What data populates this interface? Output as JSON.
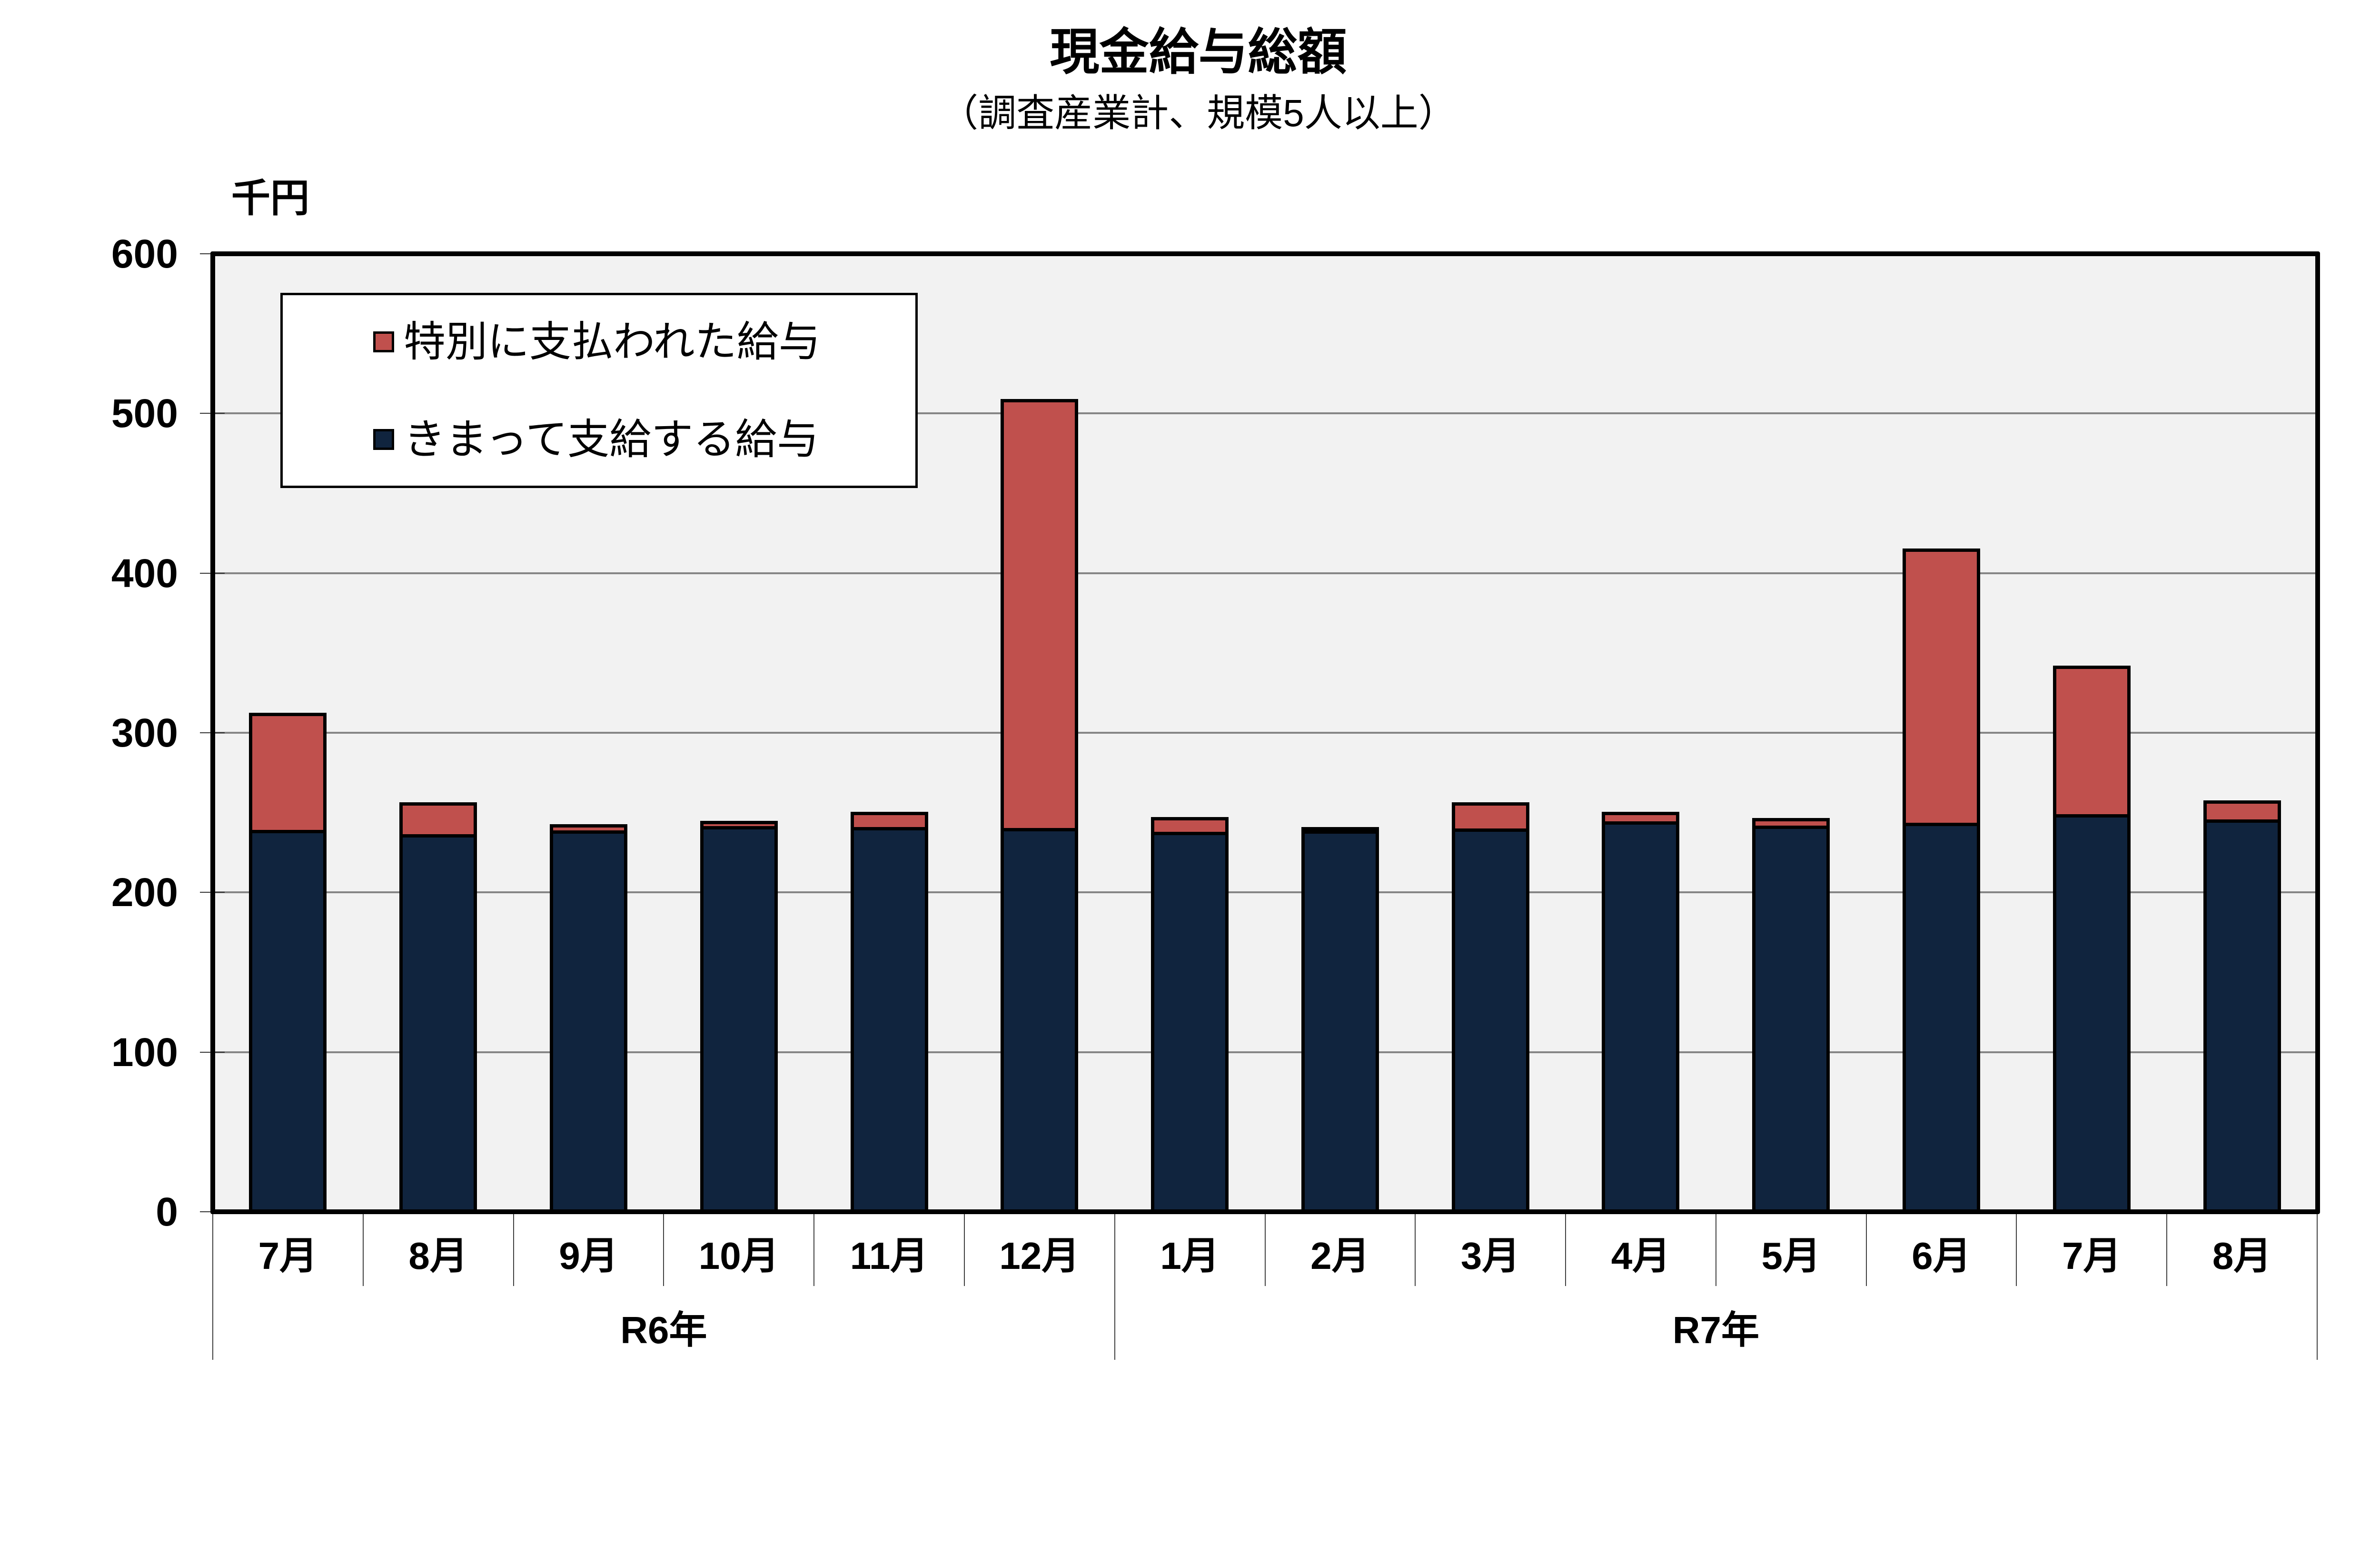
{
  "chart_data": {
    "type": "bar",
    "stacked": true,
    "title": "現金給与総額",
    "subtitle": "（調査産業計、規模5人以上）",
    "xlabel": "",
    "ylabel": "千円",
    "ylim": [
      0,
      600
    ],
    "yticks": [
      0,
      100,
      200,
      300,
      400,
      500,
      600
    ],
    "grid": true,
    "legend_position": "upper-left, inside plot area",
    "legend": [
      {
        "label": "特別に支払われた給与",
        "color": "#C0504D"
      },
      {
        "label": "きまって支給する給与",
        "color": "#10243E"
      }
    ],
    "categories": [
      "7月",
      "8月",
      "9月",
      "10月",
      "11月",
      "12月",
      "1月",
      "2月",
      "3月",
      "4月",
      "5月",
      "6月",
      "7月",
      "8月"
    ],
    "category_groups": [
      {
        "label": "R6年",
        "span": 6
      },
      {
        "label": "R7年",
        "span": 8
      }
    ],
    "series": [
      {
        "name": "きまって支給する給与",
        "color": "#10243E",
        "values": [
          238.1,
          235.4,
          237.8,
          240.6,
          239.9,
          239.4,
          236.9,
          237.9,
          238.9,
          243.4,
          240.9,
          242.5,
          248.1,
          244.7
        ]
      },
      {
        "name": "特別に支払われた給与",
        "color": "#C0504D",
        "values": [
          73.4,
          20.0,
          3.8,
          3.2,
          9.5,
          268.6,
          9.2,
          0.7,
          16.4,
          6.0,
          4.6,
          171.9,
          92.8,
          11.8
        ]
      }
    ],
    "totals": [
      311.5,
      255.4,
      241.6,
      243.8,
      249.4,
      508.0,
      246.1,
      238.6,
      255.3,
      249.4,
      245.5,
      414.4,
      340.9,
      256.5
    ]
  },
  "colors": {
    "plot_background": "#F2F2F2",
    "gridline": "#868686",
    "axis": "#000000"
  }
}
